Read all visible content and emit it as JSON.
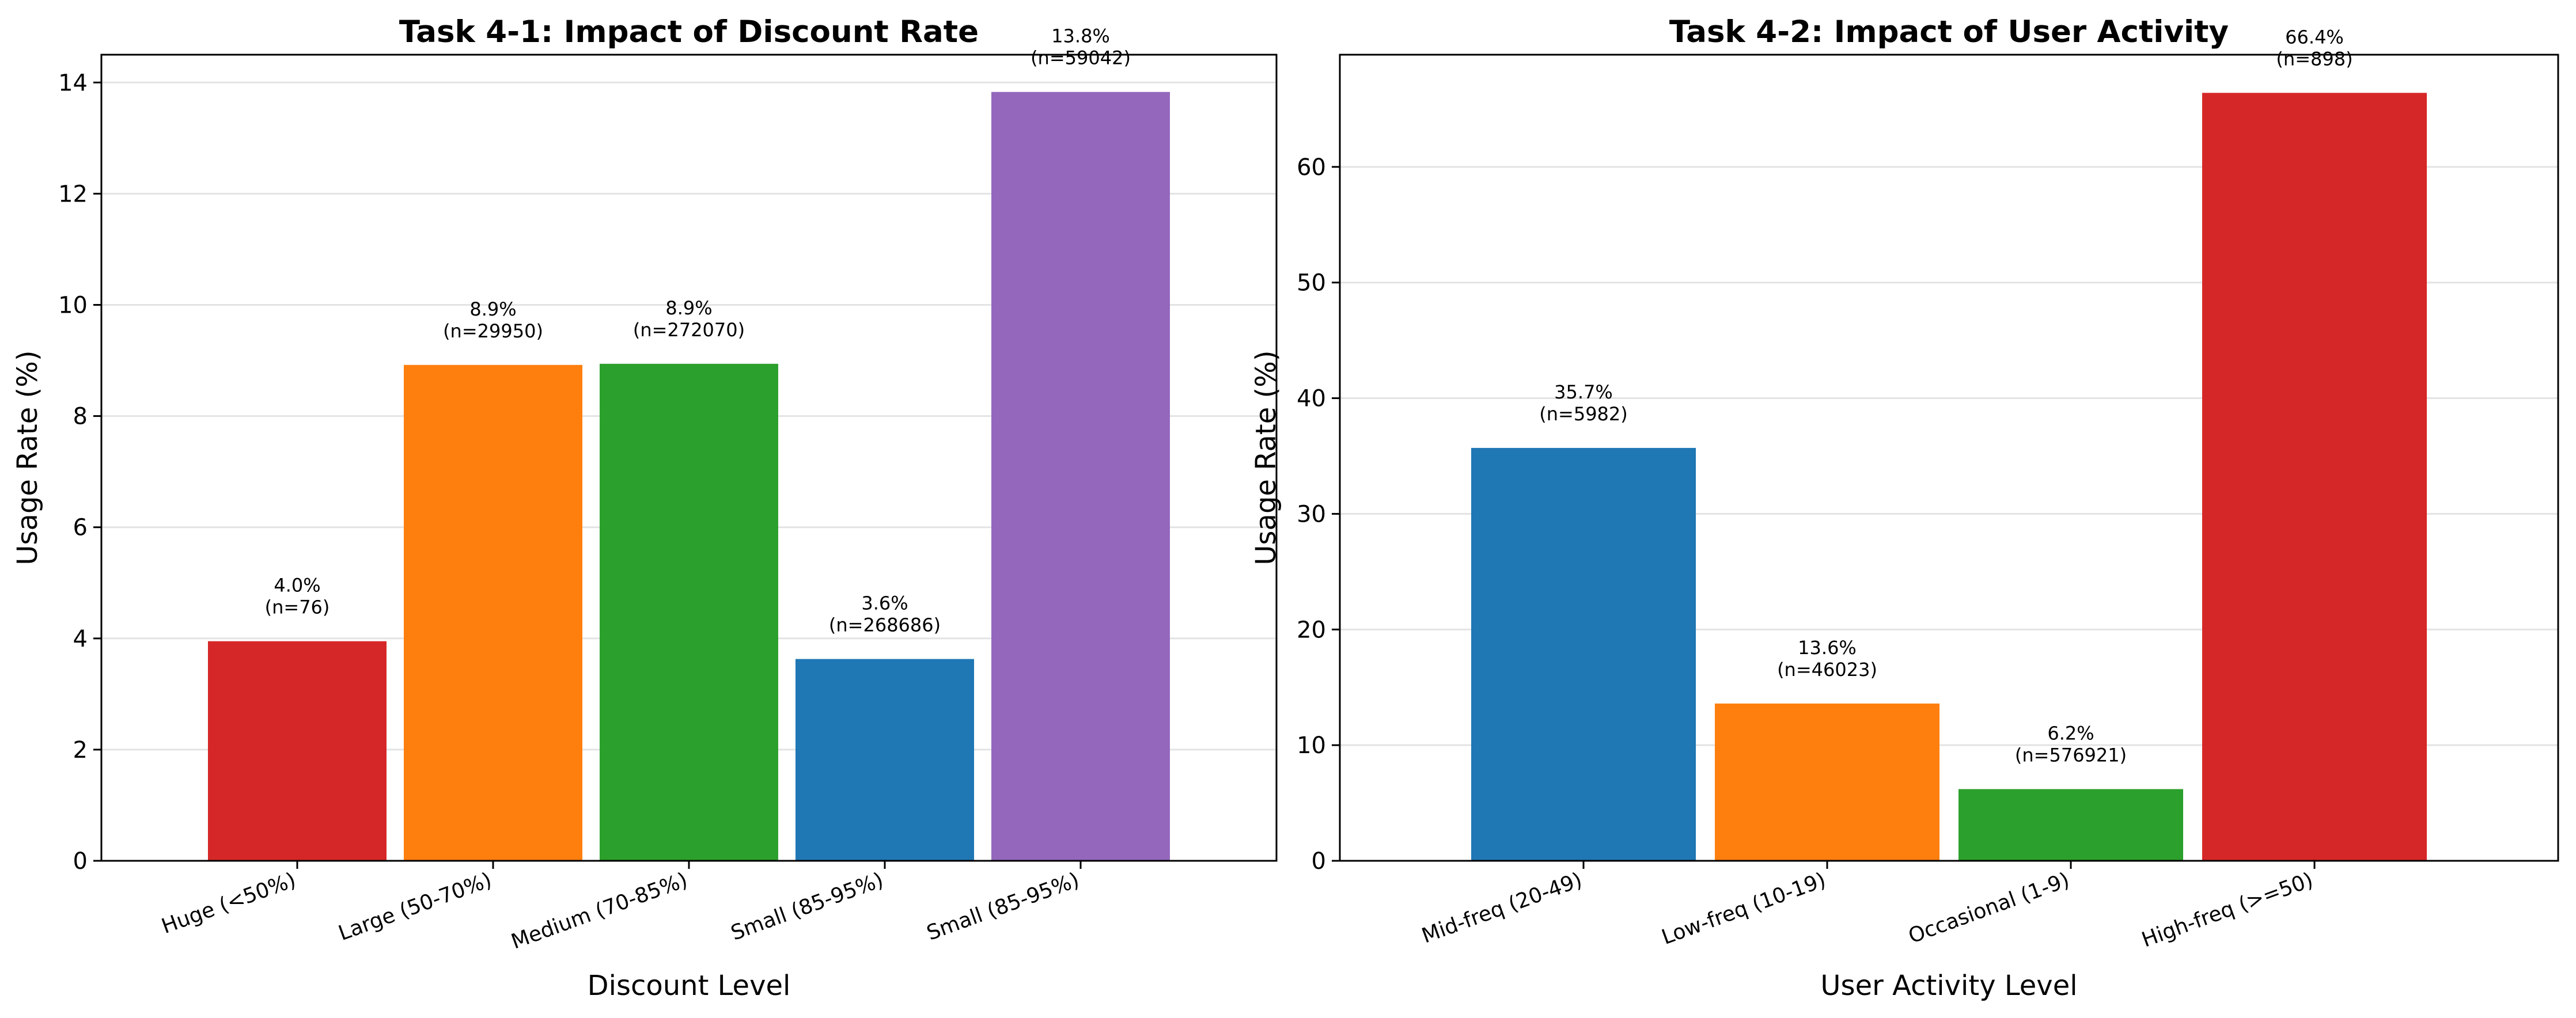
{
  "chart_data": [
    {
      "type": "bar",
      "title": "Task 4-1: Impact of Discount Rate",
      "xlabel": "Discount Level",
      "ylabel": "Usage Rate (%)",
      "ylim": [
        0,
        14.5
      ],
      "yticks": [
        "0",
        "2",
        "4",
        "6",
        "8",
        "10",
        "12",
        "14"
      ],
      "grid": "horizontal",
      "categories": [
        "Huge (<50%)",
        "Large (50-70%)",
        "Medium (70-85%)",
        "Small (85-95%)",
        "Small (85-95%)"
      ],
      "values": [
        3.95,
        8.92,
        8.94,
        3.63,
        13.83
      ],
      "colors": [
        "#d62728",
        "#ff7f0e",
        "#2ca02c",
        "#1f77b4",
        "#9467bd"
      ],
      "labels_pct": [
        "4.0%",
        "8.9%",
        "8.9%",
        "3.6%",
        "13.8%"
      ],
      "labels_n": [
        "(n=76)",
        "(n=29950)",
        "(n=272070)",
        "(n=268686)",
        "(n=59042)"
      ]
    },
    {
      "type": "bar",
      "title": "Task 4-2: Impact of User Activity",
      "xlabel": "User Activity Level",
      "ylabel": "Usage Rate (%)",
      "ylim": [
        0,
        69.7
      ],
      "yticks": [
        "0",
        "10",
        "20",
        "30",
        "40",
        "50",
        "60"
      ],
      "grid": "horizontal",
      "categories": [
        "Mid-freq (20-49)",
        "Low-freq (10-19)",
        "Occasional (1-9)",
        "High-freq (>=50)"
      ],
      "values": [
        35.7,
        13.6,
        6.2,
        66.4
      ],
      "colors": [
        "#1f77b4",
        "#ff7f0e",
        "#2ca02c",
        "#d62728"
      ],
      "labels_pct": [
        "35.7%",
        "13.6%",
        "6.2%",
        "66.4%"
      ],
      "labels_n": [
        "(n=5982)",
        "(n=46023)",
        "(n=576921)",
        "(n=898)"
      ]
    }
  ]
}
